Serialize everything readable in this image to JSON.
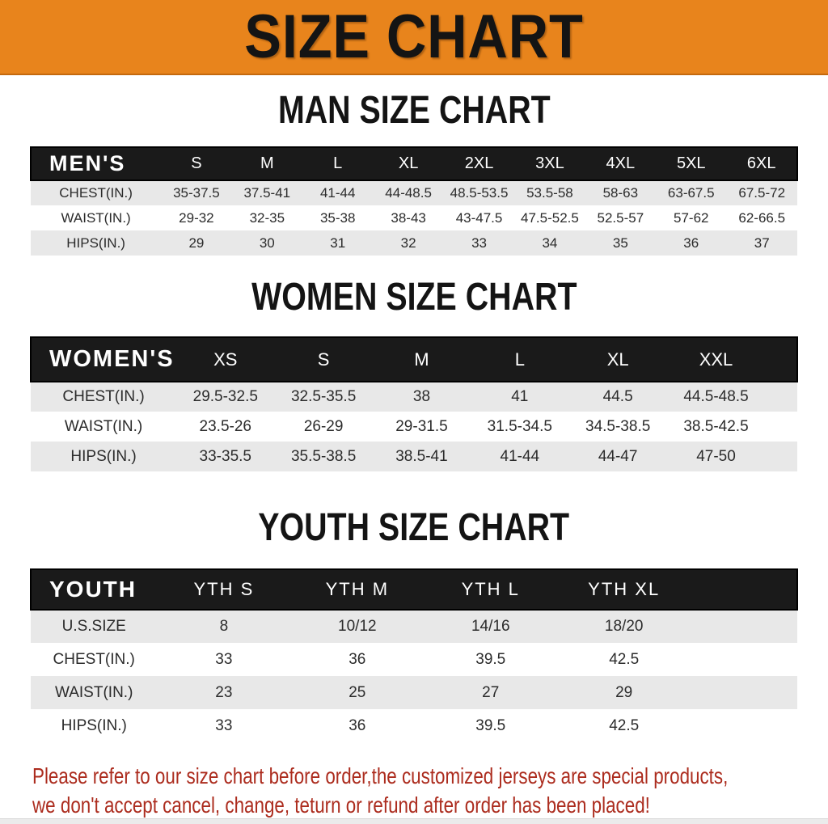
{
  "banner": {
    "title": "SIZE CHART"
  },
  "sections": [
    {
      "id": "man-size-chart",
      "heading": "MAN SIZE CHART",
      "table": {
        "header_label": "MEN'S",
        "columns": [
          "S",
          "M",
          "L",
          "XL",
          "2XL",
          "3XL",
          "4XL",
          "5XL",
          "6XL"
        ],
        "rows": [
          {
            "label": "CHEST(IN.)",
            "values": [
              "35-37.5",
              "37.5-41",
              "41-44",
              "44-48.5",
              "48.5-53.5",
              "53.5-58",
              "58-63",
              "63-67.5",
              "67.5-72"
            ]
          },
          {
            "label": "WAIST(IN.)",
            "values": [
              "29-32",
              "32-35",
              "35-38",
              "38-43",
              "43-47.5",
              "47.5-52.5",
              "52.5-57",
              "57-62",
              "62-66.5"
            ]
          },
          {
            "label": "HIPS(IN.)",
            "values": [
              "29",
              "30",
              "31",
              "32",
              "33",
              "34",
              "35",
              "36",
              "37"
            ]
          }
        ]
      }
    },
    {
      "id": "women-size-chart",
      "heading": "WOMEN SIZE CHART",
      "table": {
        "header_label": "WOMEN'S",
        "columns": [
          "XS",
          "S",
          "M",
          "L",
          "XL",
          "XXL"
        ],
        "rows": [
          {
            "label": "CHEST(IN.)",
            "values": [
              "29.5-32.5",
              "32.5-35.5",
              "38",
              "41",
              "44.5",
              "44.5-48.5"
            ]
          },
          {
            "label": "WAIST(IN.)",
            "values": [
              "23.5-26",
              "26-29",
              "29-31.5",
              "31.5-34.5",
              "34.5-38.5",
              "38.5-42.5"
            ]
          },
          {
            "label": "HIPS(IN.)",
            "values": [
              "33-35.5",
              "35.5-38.5",
              "38.5-41",
              "41-44",
              "44-47",
              "47-50"
            ]
          }
        ]
      }
    },
    {
      "id": "youth-size-chart",
      "heading": "YOUTH SIZE CHART",
      "table": {
        "header_label": "YOUTH",
        "columns": [
          "YTH S",
          "YTH M",
          "YTH L",
          "YTH XL"
        ],
        "rows": [
          {
            "label": "U.S.SIZE",
            "values": [
              "8",
              "10/12",
              "14/16",
              "18/20"
            ]
          },
          {
            "label": "CHEST(IN.)",
            "values": [
              "33",
              "36",
              "39.5",
              "42.5"
            ]
          },
          {
            "label": "WAIST(IN.)",
            "values": [
              "23",
              "25",
              "27",
              "29"
            ]
          },
          {
            "label": "HIPS(IN.)",
            "values": [
              "33",
              "36",
              "39.5",
              "42.5"
            ]
          }
        ]
      }
    }
  ],
  "footer": {
    "line1": "Please refer to our size chart before order,the customized jerseys are special products,",
    "line2": "we don't accept cancel, change, teturn or refund after order has been placed!"
  },
  "colors": {
    "banner_orange": "#e8841c",
    "table_header_black": "#1a1a1a",
    "row_alt_gray": "#e8e8e8",
    "disclaimer_red": "#ac2c1e"
  }
}
